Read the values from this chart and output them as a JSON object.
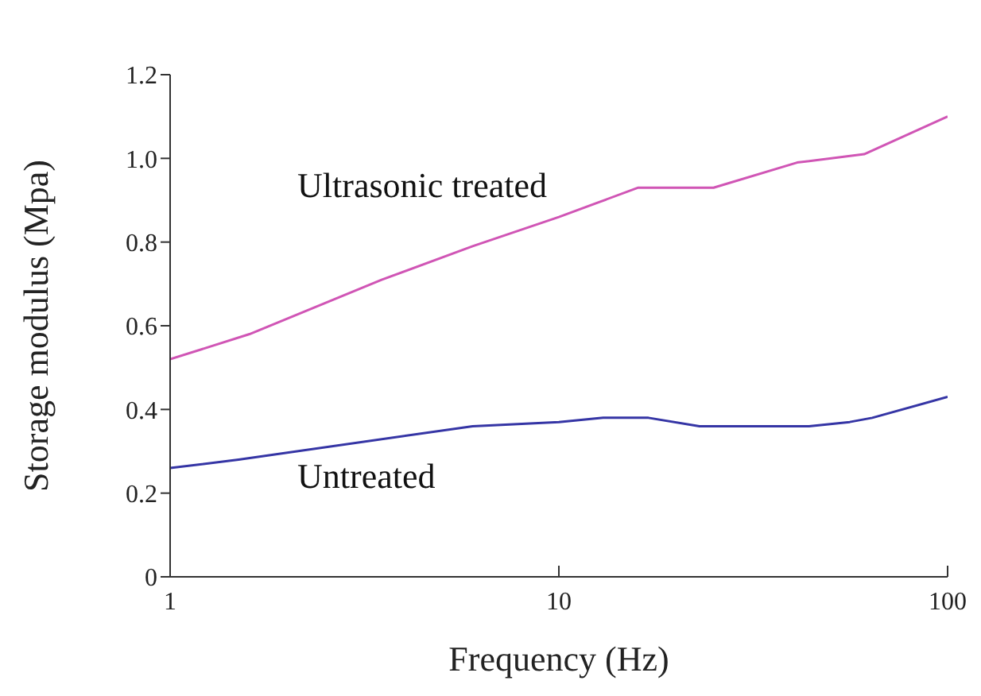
{
  "chart_data": {
    "type": "line",
    "xlabel": "Frequency (Hz)",
    "ylabel": "Storage modulus (Mpa)",
    "log": "x",
    "xlim": [
      1,
      100
    ],
    "xticks": [
      1,
      10,
      100
    ],
    "ylim": [
      0,
      1.2
    ],
    "yticks": [
      0,
      {
        "value": 0.2,
        "label": "0.2"
      },
      {
        "value": 0.4,
        "label": "0.4"
      },
      {
        "value": 0.6,
        "label": "0.6"
      },
      {
        "value": 0.8,
        "label": "0.8"
      },
      {
        "value": 1,
        "label": "1.0"
      },
      {
        "value": 1.2,
        "label": "1.2"
      }
    ],
    "grid": false,
    "legend": false,
    "marker": "none",
    "line_style": "solid",
    "series": [
      {
        "color": "#d055b5",
        "x": [
          1,
          1.6,
          3.5,
          6,
          10,
          16,
          25,
          41,
          61,
          100
        ],
        "values": [
          0.52,
          0.58,
          0.71,
          0.79,
          0.86,
          0.93,
          0.93,
          0.99,
          1.01,
          1.1
        ]
      },
      {
        "color": "#3535a5",
        "x": [
          1,
          1.5,
          6,
          10,
          13,
          17,
          23,
          44,
          56,
          64,
          100
        ],
        "values": [
          0.26,
          0.28,
          0.36,
          0.37,
          0.38,
          0.38,
          0.36,
          0.36,
          0.37,
          0.38,
          0.43
        ]
      }
    ],
    "annotations": [
      "Ultrasonic treated",
      "Untreated"
    ]
  }
}
